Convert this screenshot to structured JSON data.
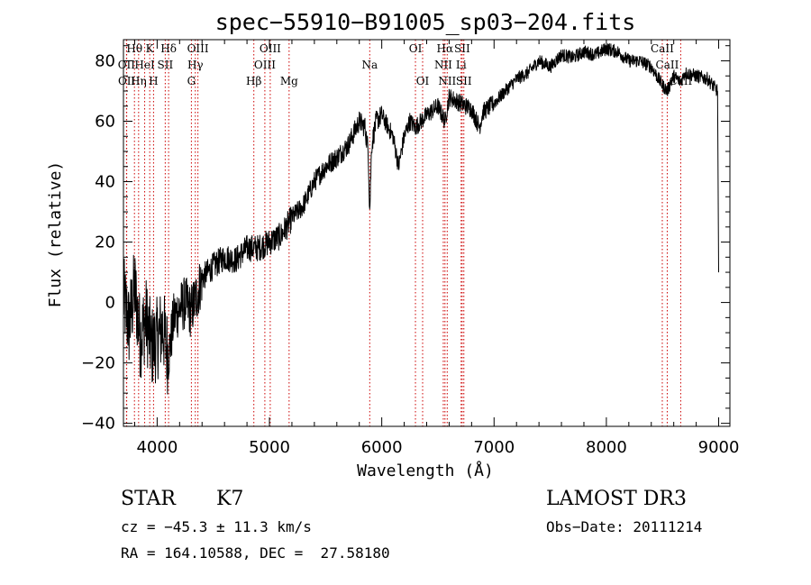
{
  "chart_data": {
    "type": "line",
    "title": "spec−55910−B91005_sp03−204.fits",
    "xlabel": "Wavelength (Å)",
    "ylabel": "Flux (relative)",
    "xlim": [
      3700,
      9100
    ],
    "ylim": [
      -41,
      87
    ],
    "x_ticks": [
      4000,
      5000,
      6000,
      7000,
      8000,
      9000
    ],
    "x_tick_labels": [
      "4000",
      "5000",
      "6000",
      "7000",
      "8000",
      "9000"
    ],
    "y_ticks": [
      -40,
      -20,
      0,
      20,
      40,
      60,
      80
    ],
    "y_tick_labels": [
      "−40",
      "−20",
      "0",
      "20",
      "40",
      "60",
      "80"
    ],
    "series": [
      {
        "name": "flux",
        "x": [
          3700,
          3750,
          3800,
          3850,
          3900,
          3950,
          4000,
          4050,
          4100,
          4150,
          4200,
          4250,
          4300,
          4350,
          4400,
          4500,
          4600,
          4700,
          4800,
          4900,
          5000,
          5100,
          5200,
          5300,
          5400,
          5500,
          5600,
          5700,
          5800,
          5850,
          5880,
          5893,
          5910,
          5950,
          6000,
          6100,
          6150,
          6200,
          6250,
          6300,
          6400,
          6500,
          6563,
          6600,
          6700,
          6800,
          6870,
          6900,
          7000,
          7100,
          7200,
          7300,
          7400,
          7500,
          7600,
          7700,
          7800,
          7900,
          8000,
          8100,
          8200,
          8300,
          8400,
          8498,
          8542,
          8600,
          8662,
          8700,
          8800,
          8900,
          8990,
          9000
        ],
        "y": [
          2,
          -8,
          5,
          -12,
          -5,
          -15,
          -12,
          -8,
          -18,
          -5,
          -2,
          0,
          -3,
          2,
          8,
          12,
          15,
          14,
          18,
          18,
          20,
          22,
          28,
          32,
          40,
          45,
          48,
          52,
          60,
          58,
          50,
          30,
          52,
          60,
          62,
          55,
          45,
          55,
          60,
          58,
          62,
          65,
          60,
          68,
          66,
          64,
          58,
          63,
          66,
          70,
          74,
          76,
          80,
          78,
          82,
          81,
          83,
          82,
          84,
          83,
          80,
          80,
          78,
          72,
          70,
          75,
          73,
          76,
          75,
          74,
          70,
          10
        ]
      }
    ],
    "spectral_lines": [
      {
        "label": "Hθ",
        "wavelength": 3798,
        "label_row": 1
      },
      {
        "label": "OII",
        "wavelength": 3727,
        "label_row": 2
      },
      {
        "label": "OII",
        "wavelength": 3729,
        "label_row": 3
      },
      {
        "label": "Hη",
        "wavelength": 3835,
        "label_row": 3
      },
      {
        "label": "HeI",
        "wavelength": 3889,
        "label_row": 2
      },
      {
        "label": "K",
        "wavelength": 3934,
        "label_row": 1
      },
      {
        "label": "H",
        "wavelength": 3968,
        "label_row": 3
      },
      {
        "label": "SII",
        "wavelength": 4072,
        "label_row": 2
      },
      {
        "label": "Hδ",
        "wavelength": 4102,
        "label_row": 1
      },
      {
        "label": "G",
        "wavelength": 4305,
        "label_row": 3
      },
      {
        "label": "Hγ",
        "wavelength": 4340,
        "label_row": 2
      },
      {
        "label": "OIII",
        "wavelength": 4363,
        "label_row": 1
      },
      {
        "label": "Hβ",
        "wavelength": 4861,
        "label_row": 3
      },
      {
        "label": "OIII",
        "wavelength": 4959,
        "label_row": 2
      },
      {
        "label": "OIII",
        "wavelength": 5007,
        "label_row": 1
      },
      {
        "label": "Mg",
        "wavelength": 5175,
        "label_row": 3
      },
      {
        "label": "Na",
        "wavelength": 5893,
        "label_row": 2
      },
      {
        "label": "OI",
        "wavelength": 6300,
        "label_row": 1
      },
      {
        "label": "OI",
        "wavelength": 6364,
        "label_row": 3
      },
      {
        "label": "NII",
        "wavelength": 6548,
        "label_row": 2
      },
      {
        "label": "Hα",
        "wavelength": 6563,
        "label_row": 1
      },
      {
        "label": "NII",
        "wavelength": 6583,
        "label_row": 3
      },
      {
        "label": "Li",
        "wavelength": 6707,
        "label_row": 2
      },
      {
        "label": "SII",
        "wavelength": 6716,
        "label_row": 1
      },
      {
        "label": "SII",
        "wavelength": 6731,
        "label_row": 3
      },
      {
        "label": "CaII",
        "wavelength": 8498,
        "label_row": 1
      },
      {
        "label": "CaII",
        "wavelength": 8542,
        "label_row": 2
      },
      {
        "label": "CaII",
        "wavelength": 8662,
        "label_row": 3
      }
    ],
    "colors": {
      "spectrum": "#000000",
      "lines": "#cc0000",
      "axes": "#000000"
    }
  },
  "info": {
    "class": "STAR",
    "subclass": "K7",
    "survey": "LAMOST DR3",
    "cz": "cz = −45.3 ± 11.3 km/s",
    "obs_date": "Obs−Date: 20111214",
    "coords": "RA = 164.10588, DEC =  27.58180"
  }
}
